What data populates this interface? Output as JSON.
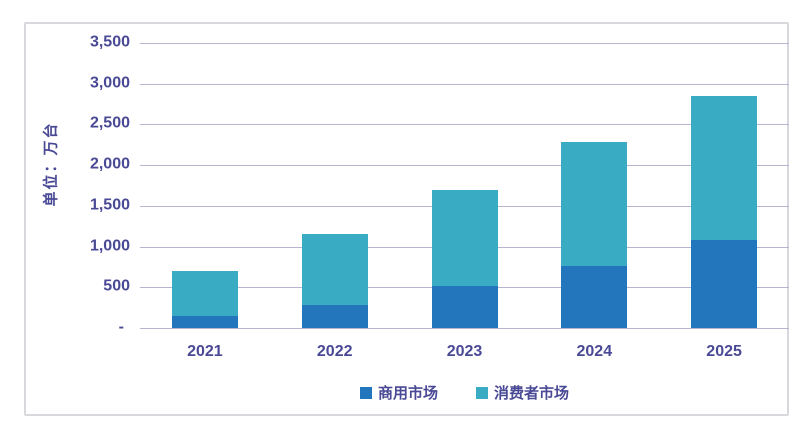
{
  "chart": {
    "unit_label": "单位：万台"
  },
  "colors": {
    "text": "#494995",
    "gridline": "#B6B6D1",
    "frame_border": "#D8D8DD",
    "background": "#FFFFFF",
    "commercial_blue": "#2375BC",
    "consumer_teal": "#39ACC4"
  },
  "chart_data": {
    "type": "bar",
    "stacked": true,
    "title": "",
    "xlabel": "",
    "ylabel": "单位：万台",
    "categories": [
      "2021",
      "2022",
      "2023",
      "2024",
      "2025"
    ],
    "series": [
      {
        "name": "商用市场",
        "color": "#2375BC",
        "values": [
          150,
          280,
          510,
          760,
          1080
        ]
      },
      {
        "name": "消费者市场",
        "color": "#39ACC4",
        "values": [
          550,
          870,
          1190,
          1520,
          1770
        ]
      }
    ],
    "totals": [
      700,
      1150,
      1700,
      2280,
      2850
    ],
    "ylim": [
      0,
      3500
    ],
    "ytick_interval": 500,
    "y_ticks": [
      {
        "label": "3,500",
        "value": 3500
      },
      {
        "label": "3,000",
        "value": 3000
      },
      {
        "label": "2,500",
        "value": 2500
      },
      {
        "label": "2,000",
        "value": 2000
      },
      {
        "label": "1,500",
        "value": 1500
      },
      {
        "label": "1,000",
        "value": 1000
      },
      {
        "label": "500",
        "value": 500
      },
      {
        "label": "-",
        "value": 0
      }
    ],
    "grid": true,
    "legend_position": "bottom"
  }
}
